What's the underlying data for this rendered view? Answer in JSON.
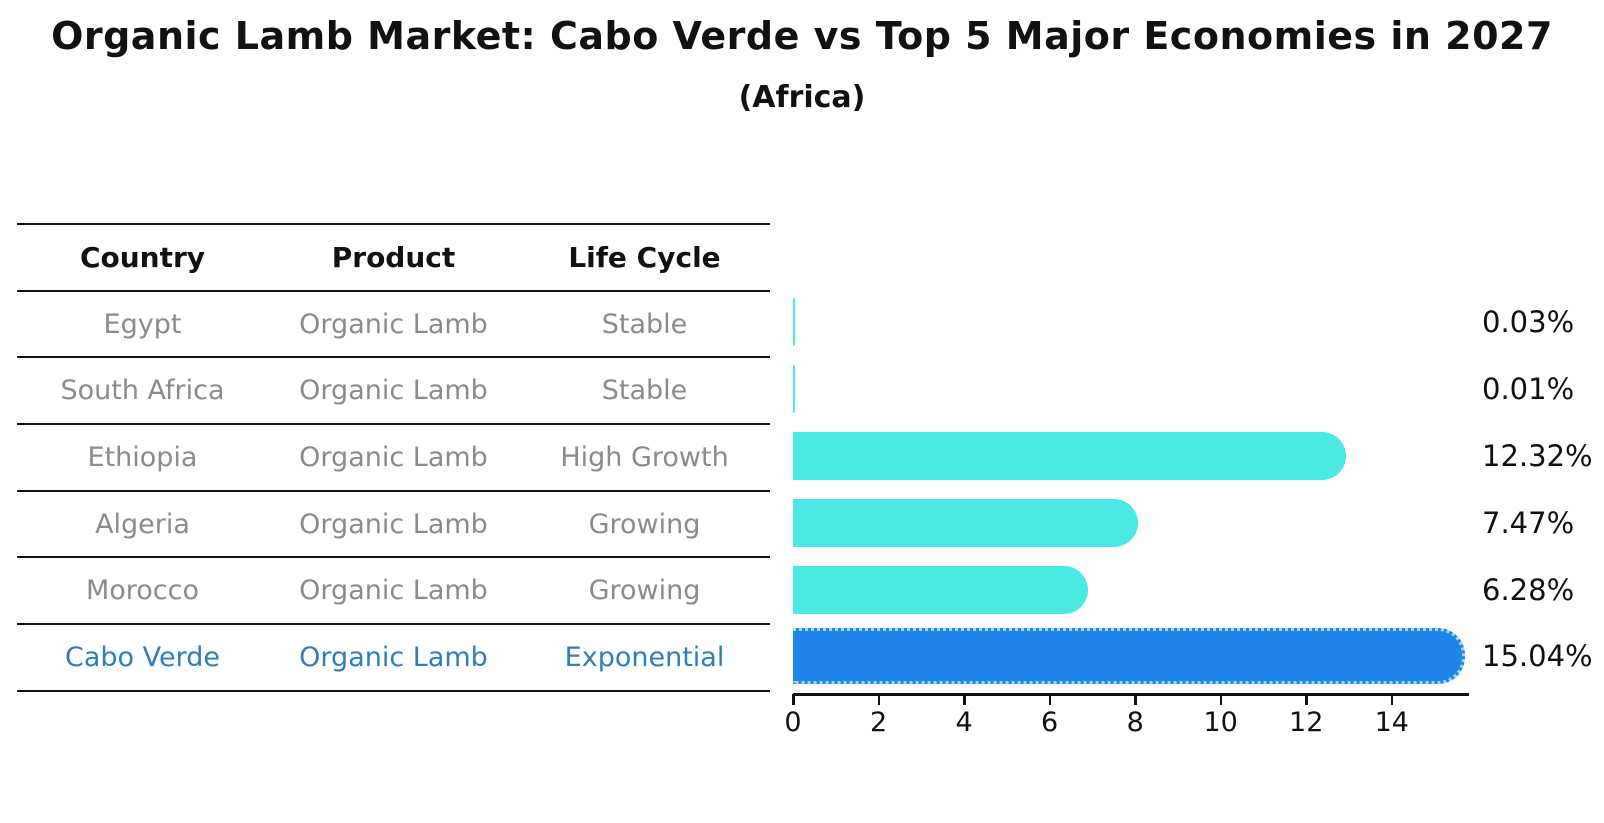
{
  "title": "Organic Lamb Market: Cabo Verde vs Top 5 Major Economies in 2027",
  "subtitle": "(Africa)",
  "table": {
    "headers": [
      "Country",
      "Product",
      "Life Cycle"
    ]
  },
  "rows": [
    {
      "country": "Egypt",
      "product": "Organic Lamb",
      "life_cycle": "Stable",
      "value": 0.03,
      "pct_label": "0.03%",
      "highlight": false
    },
    {
      "country": "South Africa",
      "product": "Organic Lamb",
      "life_cycle": "Stable",
      "value": 0.01,
      "pct_label": "0.01%",
      "highlight": false
    },
    {
      "country": "Ethiopia",
      "product": "Organic Lamb",
      "life_cycle": "High Growth",
      "value": 12.32,
      "pct_label": "12.32%",
      "highlight": false
    },
    {
      "country": "Algeria",
      "product": "Organic Lamb",
      "life_cycle": "Growing",
      "value": 7.47,
      "pct_label": "7.47%",
      "highlight": false
    },
    {
      "country": "Morocco",
      "product": "Organic Lamb",
      "life_cycle": "Growing",
      "value": 6.28,
      "pct_label": "6.28%",
      "highlight": false
    },
    {
      "country": "Cabo Verde",
      "product": "Organic Lamb",
      "life_cycle": "Exponential",
      "value": 15.04,
      "pct_label": "15.04%",
      "highlight": true
    }
  ],
  "chart_data": {
    "type": "bar",
    "orientation": "horizontal",
    "title": "Organic Lamb Market: Cabo Verde vs Top 5 Major Economies in 2027",
    "subtitle": "(Africa)",
    "categories": [
      "Egypt",
      "South Africa",
      "Ethiopia",
      "Algeria",
      "Morocco",
      "Cabo Verde"
    ],
    "values": [
      0.03,
      0.01,
      12.32,
      7.47,
      6.28,
      15.04
    ],
    "data_labels": [
      "0.03%",
      "0.01%",
      "12.32%",
      "7.47%",
      "6.28%",
      "15.04%"
    ],
    "life_cycles": [
      "Stable",
      "Stable",
      "High Growth",
      "Growing",
      "Growing",
      "Exponential"
    ],
    "xticks": [
      0,
      2,
      4,
      6,
      8,
      10,
      12,
      14
    ],
    "xlim": [
      0,
      15.8
    ],
    "grid": false,
    "legend": null,
    "colors": {
      "bar_default": "#4be9e4",
      "bar_highlight": "#1e86e8",
      "highlight_border": "#a9d6ff",
      "highlight_text": "#2e7ebe",
      "cell_text": "#8b8b8b",
      "header_text": "#111111",
      "axis": "#111111"
    }
  }
}
